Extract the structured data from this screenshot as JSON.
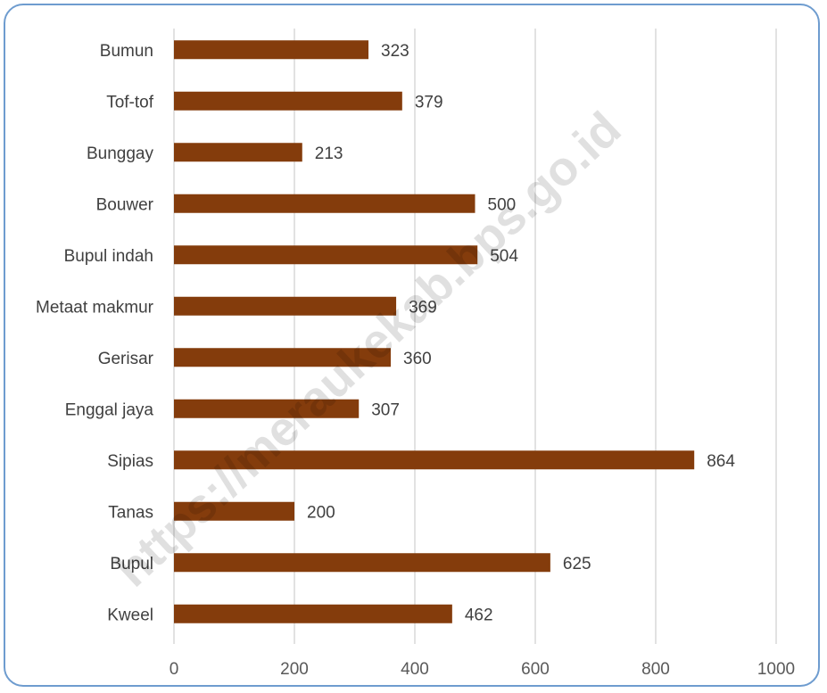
{
  "chart_data": {
    "type": "bar",
    "orientation": "horizontal",
    "categories": [
      "Bumun",
      "Tof-tof",
      "Bunggay",
      "Bouwer",
      "Bupul indah",
      "Metaat makmur",
      "Gerisar",
      "Enggal jaya",
      "Sipias",
      "Tanas",
      "Bupul",
      "Kweel"
    ],
    "values": [
      323,
      379,
      213,
      500,
      504,
      369,
      360,
      307,
      864,
      200,
      625,
      462
    ],
    "title": "",
    "xlabel": "",
    "ylabel": "",
    "xlim": [
      0,
      1000
    ],
    "x_ticks": [
      0,
      200,
      400,
      600,
      800,
      1000
    ],
    "grid": "vertical",
    "legend": "none",
    "data_labels": true
  },
  "colors": {
    "bar": "#843c0c",
    "grid": "#d9d9d9",
    "frame_border": "#6e9ccf"
  },
  "watermark": "https://meraukekab.bps.go.id"
}
